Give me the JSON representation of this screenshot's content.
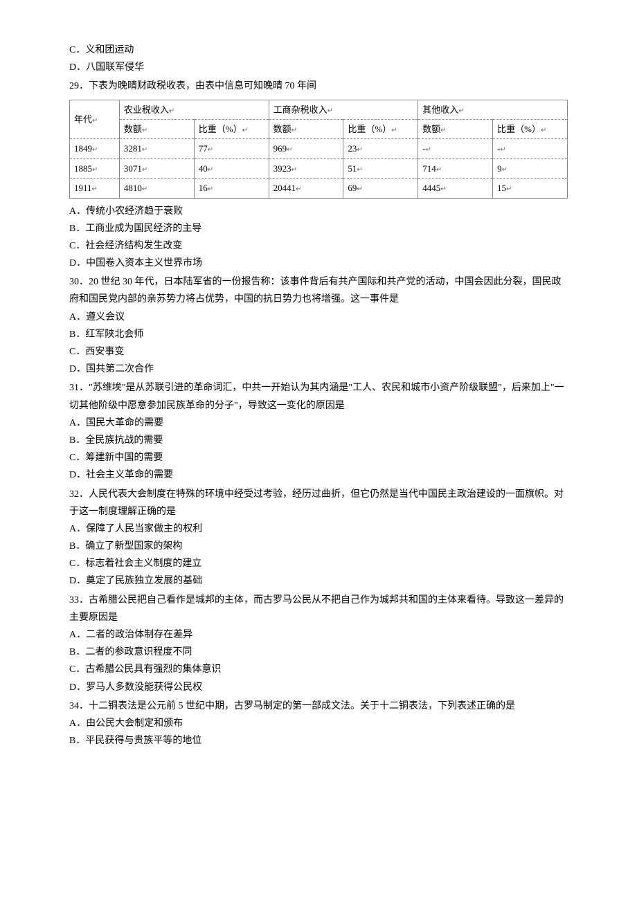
{
  "q28_continued": {
    "options": [
      "C．义和团运动",
      "D．八国联军侵华"
    ]
  },
  "q29": {
    "intro": "29．下表为晚晴财政税收表，由表中信息可知晚晴 70 年间",
    "table": {
      "header_row1": [
        "年代",
        "农业税收入",
        "工商杂税收入",
        "其他收入"
      ],
      "header_row2": [
        "数额",
        "比重（%）",
        "数额",
        "比重（%）",
        "数额",
        "比重（%）"
      ],
      "rows": [
        [
          "1849",
          "3281",
          "77",
          "969",
          "23",
          "-",
          "-"
        ],
        [
          "1885",
          "3071",
          "40",
          "3923",
          "51",
          "714",
          "9"
        ],
        [
          "1911",
          "4810",
          "16",
          "20441",
          "69",
          "4445",
          "15"
        ]
      ],
      "border_color": "#888888",
      "background_color": "#ffffff"
    },
    "options": [
      "A．传统小农经济趋于衰败",
      "B．工商业成为国民经济的主导",
      "C．社会经济结构发生改变",
      "D．中国卷入资本主义世界市场"
    ]
  },
  "q30": {
    "intro": "30．20 世纪 30 年代，日本陆军省的一份报告称：该事件背后有共产国际和共产党的活动，中国会因此分裂，国民政府和国民党内部的亲苏势力将占优势，中国的抗日势力也将增强。这一事件是",
    "options": [
      "A．遵义会议",
      "B．红军陕北会师",
      "C．西安事变",
      "D．国共第二次合作"
    ]
  },
  "q31": {
    "intro": "31．\"苏维埃\"是从苏联引进的革命词汇，中共一开始认为其内涵是\"工人、农民和城市小资产阶级联盟\"，后来加上\"一切其他阶级中愿意参加民族革命的分子\"，导致这一变化的原因是",
    "options": [
      "A．国民大革命的需要",
      "B．全民族抗战的需要",
      "C．筹建新中国的需要",
      "D．社会主义革命的需要"
    ]
  },
  "q32": {
    "intro": "32．人民代表大会制度在特殊的环境中经受过考验，经历过曲折，但它仍然是当代中国民主政治建设的一面旗帜。对于这一制度理解正确的是",
    "options": [
      "A．保障了人民当家做主的权利",
      "B．确立了新型国家的架构",
      "C．标志着社会主义制度的建立",
      "D．奠定了民族独立发展的基础"
    ]
  },
  "q33": {
    "intro": "33．古希腊公民把自己看作是城邦的主体，而古罗马公民从不把自己作为城邦共和国的主体来看待。导致这一差异的主要原因是",
    "options": [
      "A．二者的政治体制存在差异",
      "B．二者的参政意识程度不同",
      "C．古希腊公民具有强烈的集体意识",
      "D．罗马人多数没能获得公民权"
    ]
  },
  "q34": {
    "intro": "34．十二铜表法是公元前 5 世纪中期，古罗马制定的第一部成文法。关于十二铜表法，下列表述正确的是",
    "options": [
      "A．由公民大会制定和颁布",
      "B．平民获得与贵族平等的地位"
    ]
  },
  "enter_glyph": "↵"
}
